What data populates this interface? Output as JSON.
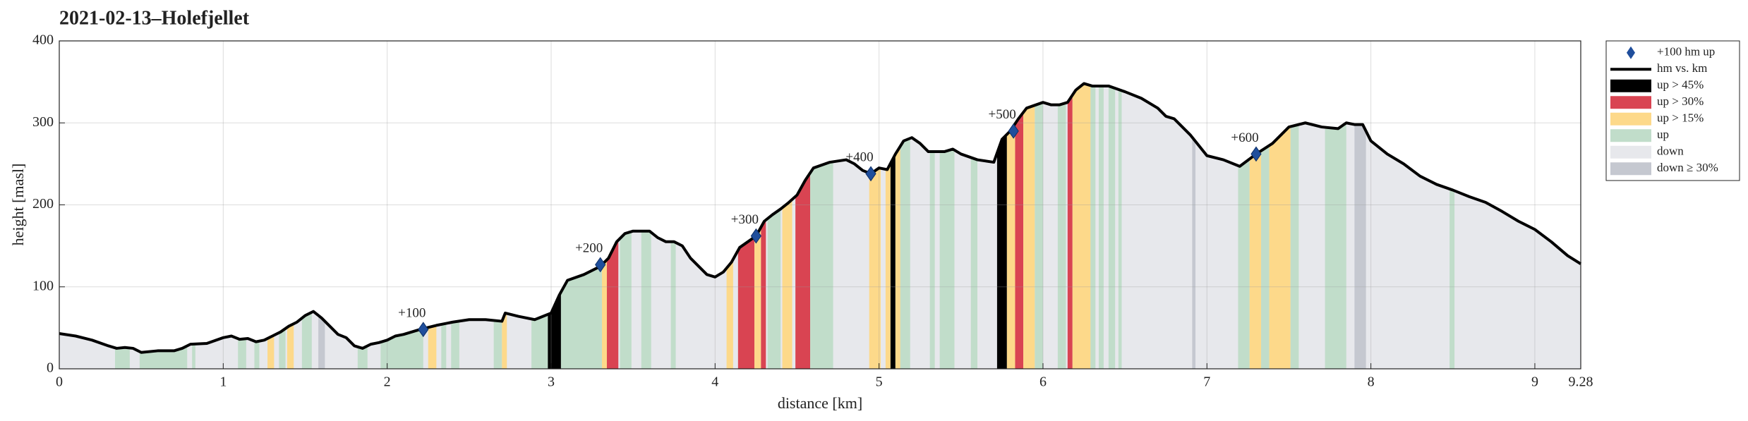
{
  "chart_data": {
    "type": "profile",
    "title": "2021-02-13–Holefjellet",
    "xlabel": "distance [km]",
    "ylabel": "height [masl]",
    "xlim": [
      0,
      9.28
    ],
    "ylim": [
      0,
      400
    ],
    "xticks": [
      0,
      1,
      2,
      3,
      4,
      5,
      6,
      7,
      8,
      9,
      9.28
    ],
    "yticks": [
      0,
      100,
      200,
      300,
      400
    ],
    "grid": true,
    "legend_position": "outside right",
    "line_name": "hm vs. km",
    "line_color": "#000000",
    "marker_name": "+100 hm up",
    "marker_color": "#1f4e9c",
    "default_class": 4,
    "classes": [
      {
        "name": "up > 45%",
        "color": "#000000"
      },
      {
        "name": "up > 30%",
        "color": "#d94452"
      },
      {
        "name": "up > 15%",
        "color": "#fdd98a"
      },
      {
        "name": "up",
        "color": "#c1ddca"
      },
      {
        "name": "down",
        "color": "#e7e8ec"
      },
      {
        "name": "down ≥ 30%",
        "color": "#c5c8d0"
      }
    ],
    "x": [
      0,
      0.1,
      0.2,
      0.3,
      0.35,
      0.4,
      0.45,
      0.5,
      0.6,
      0.7,
      0.75,
      0.8,
      0.9,
      1.0,
      1.05,
      1.1,
      1.15,
      1.2,
      1.25,
      1.3,
      1.35,
      1.4,
      1.45,
      1.5,
      1.55,
      1.6,
      1.65,
      1.7,
      1.75,
      1.8,
      1.85,
      1.9,
      1.95,
      2.0,
      2.05,
      2.1,
      2.2,
      2.3,
      2.35,
      2.4,
      2.5,
      2.6,
      2.7,
      2.72,
      2.8,
      2.9,
      3.0,
      3.05,
      3.1,
      3.2,
      3.3,
      3.35,
      3.4,
      3.45,
      3.5,
      3.6,
      3.65,
      3.7,
      3.75,
      3.8,
      3.85,
      3.9,
      3.95,
      4.0,
      4.05,
      4.1,
      4.15,
      4.25,
      4.3,
      4.35,
      4.4,
      4.45,
      4.5,
      4.55,
      4.6,
      4.7,
      4.8,
      4.85,
      4.9,
      4.95,
      5.0,
      5.05,
      5.1,
      5.15,
      5.2,
      5.25,
      5.3,
      5.4,
      5.45,
      5.5,
      5.6,
      5.7,
      5.75,
      5.8,
      5.85,
      5.9,
      6.0,
      6.05,
      6.1,
      6.15,
      6.2,
      6.25,
      6.3,
      6.4,
      6.5,
      6.6,
      6.7,
      6.75,
      6.8,
      6.9,
      7.0,
      7.1,
      7.2,
      7.3,
      7.4,
      7.5,
      7.6,
      7.7,
      7.8,
      7.85,
      7.9,
      7.95,
      8.0,
      8.1,
      8.2,
      8.3,
      8.4,
      8.5,
      8.6,
      8.7,
      8.8,
      8.9,
      9.0,
      9.1,
      9.2,
      9.28
    ],
    "values": [
      43,
      40,
      35,
      28,
      25,
      26,
      25,
      20,
      22,
      22,
      25,
      30,
      31,
      38,
      40,
      36,
      37,
      33,
      35,
      40,
      45,
      52,
      57,
      65,
      70,
      62,
      52,
      42,
      38,
      28,
      25,
      30,
      32,
      35,
      40,
      42,
      48,
      53,
      55,
      57,
      60,
      60,
      58,
      68,
      64,
      60,
      68,
      90,
      108,
      115,
      125,
      135,
      155,
      165,
      168,
      168,
      160,
      155,
      155,
      150,
      135,
      125,
      115,
      112,
      118,
      130,
      148,
      162,
      180,
      188,
      195,
      203,
      212,
      230,
      245,
      252,
      255,
      250,
      242,
      238,
      245,
      243,
      262,
      278,
      282,
      275,
      265,
      265,
      268,
      262,
      255,
      252,
      280,
      290,
      305,
      318,
      325,
      322,
      322,
      325,
      340,
      348,
      345,
      345,
      338,
      330,
      318,
      308,
      305,
      285,
      260,
      255,
      247,
      262,
      275,
      295,
      300,
      295,
      293,
      300,
      298,
      298,
      278,
      262,
      250,
      235,
      225,
      218,
      210,
      203,
      192,
      180,
      170,
      155,
      138,
      128
    ],
    "bands": [
      [
        0.34,
        0.43,
        3
      ],
      [
        0.49,
        0.78,
        3
      ],
      [
        0.81,
        0.83,
        3
      ],
      [
        1.09,
        1.14,
        3
      ],
      [
        1.19,
        1.22,
        3
      ],
      [
        1.27,
        1.31,
        2
      ],
      [
        1.34,
        1.38,
        3
      ],
      [
        1.39,
        1.43,
        2
      ],
      [
        1.48,
        1.54,
        3
      ],
      [
        1.58,
        1.62,
        5
      ],
      [
        1.82,
        1.88,
        3
      ],
      [
        1.96,
        2.22,
        3
      ],
      [
        2.25,
        2.3,
        2
      ],
      [
        2.33,
        2.36,
        3
      ],
      [
        2.39,
        2.44,
        3
      ],
      [
        2.65,
        2.7,
        3
      ],
      [
        2.7,
        2.73,
        2
      ],
      [
        2.88,
        2.98,
        3
      ],
      [
        2.98,
        3.06,
        0
      ],
      [
        3.06,
        3.31,
        3
      ],
      [
        3.31,
        3.34,
        2
      ],
      [
        3.34,
        3.41,
        1
      ],
      [
        3.42,
        3.49,
        3
      ],
      [
        3.55,
        3.61,
        3
      ],
      [
        3.73,
        3.76,
        3
      ],
      [
        4.07,
        4.11,
        2
      ],
      [
        4.14,
        4.24,
        1
      ],
      [
        4.24,
        4.28,
        2
      ],
      [
        4.28,
        4.31,
        1
      ],
      [
        4.32,
        4.4,
        3
      ],
      [
        4.41,
        4.47,
        2
      ],
      [
        4.49,
        4.58,
        1
      ],
      [
        4.58,
        4.72,
        3
      ],
      [
        4.94,
        5.01,
        2
      ],
      [
        5.04,
        5.07,
        2
      ],
      [
        5.07,
        5.1,
        0
      ],
      [
        5.1,
        5.13,
        2
      ],
      [
        5.13,
        5.19,
        3
      ],
      [
        5.31,
        5.34,
        3
      ],
      [
        5.37,
        5.46,
        3
      ],
      [
        5.56,
        5.6,
        3
      ],
      [
        5.72,
        5.78,
        0
      ],
      [
        5.78,
        5.83,
        2
      ],
      [
        5.83,
        5.88,
        1
      ],
      [
        5.88,
        5.95,
        2
      ],
      [
        5.95,
        6.0,
        3
      ],
      [
        6.09,
        6.14,
        3
      ],
      [
        6.15,
        6.18,
        1
      ],
      [
        6.18,
        6.29,
        2
      ],
      [
        6.29,
        6.32,
        3
      ],
      [
        6.34,
        6.37,
        3
      ],
      [
        6.4,
        6.44,
        3
      ],
      [
        6.46,
        6.48,
        3
      ],
      [
        6.91,
        6.93,
        5
      ],
      [
        7.19,
        7.26,
        3
      ],
      [
        7.26,
        7.33,
        2
      ],
      [
        7.33,
        7.38,
        3
      ],
      [
        7.38,
        7.51,
        2
      ],
      [
        7.51,
        7.56,
        3
      ],
      [
        7.72,
        7.85,
        3
      ],
      [
        7.9,
        7.97,
        5
      ],
      [
        8.48,
        8.51,
        3
      ]
    ],
    "markers": [
      {
        "x": 2.22,
        "y": 48,
        "label": "+100"
      },
      {
        "x": 3.3,
        "y": 127,
        "label": "+200"
      },
      {
        "x": 4.25,
        "y": 162,
        "label": "+300"
      },
      {
        "x": 4.95,
        "y": 238,
        "label": "+400"
      },
      {
        "x": 5.82,
        "y": 290,
        "label": "+500"
      },
      {
        "x": 7.3,
        "y": 262,
        "label": "+600"
      }
    ]
  }
}
